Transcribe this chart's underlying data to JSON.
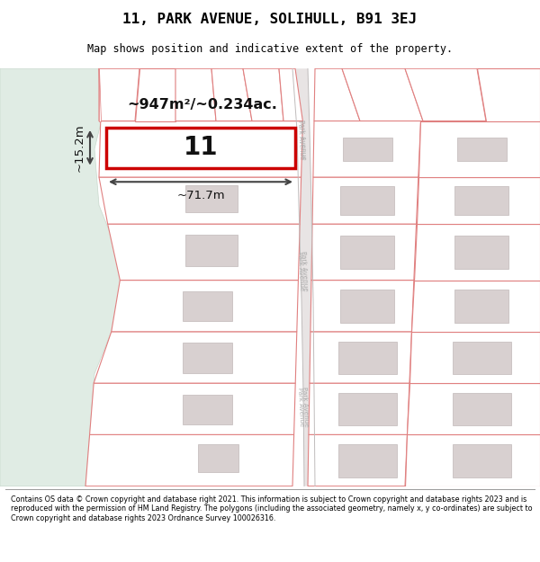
{
  "title": "11, PARK AVENUE, SOLIHULL, B91 3EJ",
  "subtitle": "Map shows position and indicative extent of the property.",
  "footer": "Contains OS data © Crown copyright and database right 2021. This information is subject to Crown copyright and database rights 2023 and is reproduced with the permission of HM Land Registry. The polygons (including the associated geometry, namely x, y co-ordinates) are subject to Crown copyright and database rights 2023 Ordnance Survey 100026316.",
  "bg_color": "#ffffff",
  "map_bg": "#ffffff",
  "parcel_fill": "#ffffff",
  "parcel_border": "#e08080",
  "building_fill": "#d8d0d0",
  "building_border": "#c0b8b8",
  "green_fill": "#e0ece4",
  "green_border": "#c8d8cc",
  "road_fill": "#e8e4e4",
  "road_border": "#c8c4c4",
  "plot_fill": "#ffffff",
  "plot_border": "#cc0000",
  "area_text": "~947m²/~0.234ac.",
  "width_text": "~71.7m",
  "height_text": "~15.2m",
  "plot_label": "11"
}
